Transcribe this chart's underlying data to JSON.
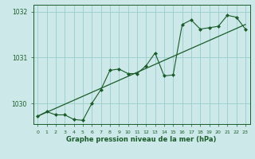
{
  "title": "Graphe pression niveau de la mer (hPa)",
  "bg_color": "#cce8e8",
  "grid_color": "#99cccc",
  "line_color": "#1a5c2a",
  "marker_color": "#1a5c2a",
  "ylim": [
    1029.55,
    1032.15
  ],
  "xlim": [
    -0.5,
    23.5
  ],
  "yticks": [
    1030,
    1031,
    1032
  ],
  "xticks": [
    0,
    1,
    2,
    3,
    4,
    5,
    6,
    7,
    8,
    9,
    10,
    11,
    12,
    13,
    14,
    15,
    16,
    17,
    18,
    19,
    20,
    21,
    22,
    23
  ],
  "hourly_data": [
    1029.72,
    1029.82,
    1029.75,
    1029.75,
    1029.65,
    1029.63,
    1030.0,
    1030.3,
    1030.72,
    1030.75,
    1030.65,
    1030.65,
    1030.82,
    1031.1,
    1030.6,
    1030.62,
    1031.72,
    1031.82,
    1031.62,
    1031.65,
    1031.68,
    1031.92,
    1031.88,
    1031.62
  ],
  "trend_x": [
    0,
    23
  ],
  "trend_y": [
    1029.72,
    1031.72
  ]
}
